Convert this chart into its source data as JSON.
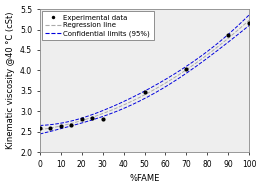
{
  "title": "",
  "xlabel": "%FAME",
  "ylabel": "Kinematic viscosity @40 °C (cSt)",
  "xlim": [
    0,
    100
  ],
  "ylim": [
    2.0,
    5.5
  ],
  "xticks": [
    0,
    10,
    20,
    30,
    40,
    50,
    60,
    70,
    80,
    90,
    100
  ],
  "yticks": [
    2.0,
    2.5,
    3.0,
    3.5,
    4.0,
    4.5,
    5.0,
    5.5
  ],
  "exp_x": [
    0,
    5,
    10,
    15,
    20,
    25,
    30,
    50,
    70,
    90,
    100
  ],
  "exp_y": [
    2.6,
    2.6,
    2.63,
    2.67,
    2.82,
    2.84,
    2.82,
    3.47,
    4.03,
    4.87,
    5.15
  ],
  "regression_color": "#aaaaaa",
  "ci_color": "#0000dd",
  "data_color": "#000000",
  "bg_color": "#eeeeee",
  "font_size": 5.5,
  "axis_font_size": 6,
  "tick_font_size": 5.5,
  "legend_fontsize": 5.0
}
